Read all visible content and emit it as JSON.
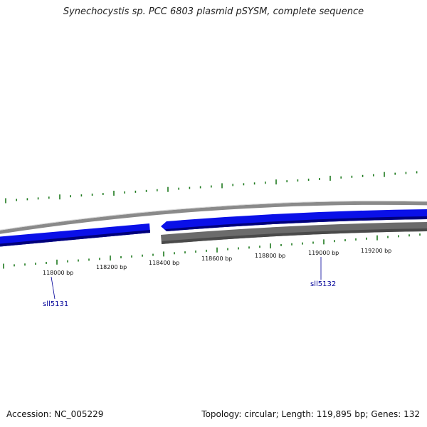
{
  "title": "Synechocystis sp. PCC 6803 plasmid pSYSM, complete sequence",
  "footer": {
    "accession": "Accession: NC_005229",
    "summary": "Topology: circular; Length: 119,895 bp; Genes: 132"
  },
  "colors": {
    "forward_gene": "#0a10e8",
    "reverse_gene": "#6b6b6b",
    "backbone": "#8a8a8a",
    "gc_ticks": "#1e7a1e",
    "gene_label": "#000099"
  },
  "scale_ticks": [
    {
      "label": "118000 bp"
    },
    {
      "label": "118200 bp"
    },
    {
      "label": "118400 bp"
    },
    {
      "label": "118600 bp"
    },
    {
      "label": "118800 bp"
    },
    {
      "label": "119000 bp"
    },
    {
      "label": "119200 bp"
    }
  ],
  "gene_labels": [
    {
      "label": "sll5131"
    },
    {
      "label": "sll5132"
    }
  ]
}
